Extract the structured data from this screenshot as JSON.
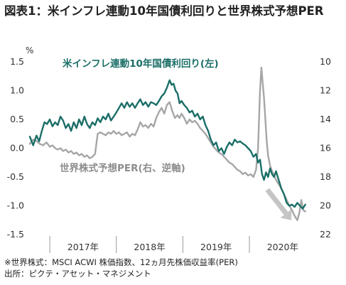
{
  "title": "図表1：米インフレ連動10年国債利回りと世界株式予想PER",
  "footnotes": [
    "※世界株式：MSCI ACWI 株価指数、12ヵ月先株価収益率(PER)",
    "出所：ピクテ・アセット・マネジメント"
  ],
  "chart_data": {
    "type": "line",
    "left_axis": {
      "unit": "%",
      "ylim": [
        -1.5,
        1.5
      ],
      "ticks": [
        1.5,
        1.0,
        0.5,
        0.0,
        -0.5,
        -1.0,
        -1.5
      ],
      "tick_labels": [
        "1.5",
        "1.0",
        "0.5",
        "0.0",
        "-0.5",
        "-1.0",
        "-1.5"
      ]
    },
    "right_axis": {
      "ylim": [
        10,
        22
      ],
      "inverted": true,
      "ticks": [
        10,
        12,
        14,
        16,
        18,
        20,
        22
      ],
      "tick_labels": [
        "10",
        "12",
        "14",
        "16",
        "18",
        "20",
        "22"
      ]
    },
    "x_axis": {
      "range": [
        2016.7,
        2020.95
      ],
      "years": [
        2017,
        2018,
        2019,
        2020
      ],
      "year_labels": [
        "2017年",
        "2018年",
        "2019年",
        "2020年"
      ],
      "year_boundaries": [
        2017,
        2018,
        2019,
        2020
      ]
    },
    "grid": false,
    "series": [
      {
        "name": "米インフレ連動10年国債利回り(左)",
        "axis": "left",
        "color": "#1a6e67",
        "points": [
          [
            2016.7,
            0.2
          ],
          [
            2016.75,
            0.05
          ],
          [
            2016.8,
            0.22
          ],
          [
            2016.84,
            0.12
          ],
          [
            2016.88,
            0.3
          ],
          [
            2016.92,
            0.45
          ],
          [
            2016.96,
            0.42
          ],
          [
            2017.0,
            0.5
          ],
          [
            2017.04,
            0.38
          ],
          [
            2017.08,
            0.45
          ],
          [
            2017.12,
            0.4
          ],
          [
            2017.16,
            0.55
          ],
          [
            2017.2,
            0.48
          ],
          [
            2017.24,
            0.35
          ],
          [
            2017.28,
            0.42
          ],
          [
            2017.32,
            0.3
          ],
          [
            2017.36,
            0.45
          ],
          [
            2017.4,
            0.35
          ],
          [
            2017.44,
            0.5
          ],
          [
            2017.48,
            0.4
          ],
          [
            2017.52,
            0.55
          ],
          [
            2017.56,
            0.42
          ],
          [
            2017.6,
            0.35
          ],
          [
            2017.64,
            0.45
          ],
          [
            2017.68,
            0.4
          ],
          [
            2017.72,
            0.52
          ],
          [
            2017.76,
            0.45
          ],
          [
            2017.8,
            0.55
          ],
          [
            2017.84,
            0.5
          ],
          [
            2017.88,
            0.6
          ],
          [
            2017.92,
            0.48
          ],
          [
            2017.96,
            0.55
          ],
          [
            2018.0,
            0.62
          ],
          [
            2018.04,
            0.7
          ],
          [
            2018.08,
            0.78
          ],
          [
            2018.12,
            0.7
          ],
          [
            2018.16,
            0.8
          ],
          [
            2018.2,
            0.72
          ],
          [
            2018.24,
            0.78
          ],
          [
            2018.28,
            0.7
          ],
          [
            2018.32,
            0.78
          ],
          [
            2018.36,
            0.85
          ],
          [
            2018.4,
            0.75
          ],
          [
            2018.44,
            0.8
          ],
          [
            2018.48,
            0.72
          ],
          [
            2018.52,
            0.8
          ],
          [
            2018.56,
            0.78
          ],
          [
            2018.6,
            0.75
          ],
          [
            2018.64,
            0.82
          ],
          [
            2018.68,
            0.9
          ],
          [
            2018.72,
            0.95
          ],
          [
            2018.76,
            1.05
          ],
          [
            2018.8,
            1.18
          ],
          [
            2018.83,
            1.1
          ],
          [
            2018.86,
            1.12
          ],
          [
            2018.89,
            1.0
          ],
          [
            2018.92,
            0.95
          ],
          [
            2018.95,
            0.78
          ],
          [
            2018.98,
            0.82
          ],
          [
            2019.02,
            0.75
          ],
          [
            2019.06,
            0.7
          ],
          [
            2019.1,
            0.62
          ],
          [
            2019.14,
            0.65
          ],
          [
            2019.18,
            0.55
          ],
          [
            2019.22,
            0.6
          ],
          [
            2019.26,
            0.5
          ],
          [
            2019.3,
            0.55
          ],
          [
            2019.34,
            0.4
          ],
          [
            2019.38,
            0.3
          ],
          [
            2019.42,
            0.15
          ],
          [
            2019.46,
            0.05
          ],
          [
            2019.5,
            0.1
          ],
          [
            2019.54,
            -0.05
          ],
          [
            2019.58,
            0.0
          ],
          [
            2019.62,
            -0.1
          ],
          [
            2019.66,
            0.02
          ],
          [
            2019.7,
            0.1
          ],
          [
            2019.74,
            0.05
          ],
          [
            2019.78,
            0.15
          ],
          [
            2019.82,
            0.1
          ],
          [
            2019.86,
            0.12
          ],
          [
            2019.9,
            0.08
          ],
          [
            2019.94,
            0.05
          ],
          [
            2019.98,
            0.0
          ],
          [
            2020.02,
            -0.05
          ],
          [
            2020.06,
            -0.15
          ],
          [
            2020.1,
            -0.1
          ],
          [
            2020.13,
            -0.25
          ],
          [
            2020.16,
            -0.2
          ],
          [
            2020.19,
            -0.45
          ],
          [
            2020.22,
            -0.55
          ],
          [
            2020.25,
            -0.42
          ],
          [
            2020.28,
            -0.5
          ],
          [
            2020.31,
            -0.35
          ],
          [
            2020.34,
            -0.45
          ],
          [
            2020.37,
            -0.5
          ],
          [
            2020.4,
            -0.4
          ],
          [
            2020.44,
            -0.55
          ],
          [
            2020.48,
            -0.7
          ],
          [
            2020.52,
            -0.8
          ],
          [
            2020.56,
            -0.95
          ],
          [
            2020.6,
            -1.0
          ],
          [
            2020.64,
            -0.98
          ],
          [
            2020.68,
            -1.02
          ],
          [
            2020.72,
            -0.95
          ],
          [
            2020.76,
            -1.0
          ],
          [
            2020.8,
            -1.05
          ],
          [
            2020.84,
            -0.98
          ]
        ]
      },
      {
        "name": "世界株式予想PER(右、逆軸)",
        "axis": "right",
        "color": "#a6a6a6",
        "points": [
          [
            2016.7,
            15.7
          ],
          [
            2016.75,
            15.4
          ],
          [
            2016.8,
            15.5
          ],
          [
            2016.85,
            15.7
          ],
          [
            2016.9,
            15.8
          ],
          [
            2016.95,
            15.6
          ],
          [
            2017.0,
            15.9
          ],
          [
            2017.04,
            15.8
          ],
          [
            2017.08,
            16.0
          ],
          [
            2017.12,
            16.1
          ],
          [
            2017.16,
            16.0
          ],
          [
            2017.2,
            16.2
          ],
          [
            2017.24,
            16.1
          ],
          [
            2017.28,
            16.3
          ],
          [
            2017.32,
            16.2
          ],
          [
            2017.36,
            16.4
          ],
          [
            2017.4,
            16.3
          ],
          [
            2017.44,
            16.5
          ],
          [
            2017.48,
            16.4
          ],
          [
            2017.52,
            16.6
          ],
          [
            2017.56,
            16.5
          ],
          [
            2017.6,
            16.7
          ],
          [
            2017.64,
            16.6
          ],
          [
            2017.68,
            16.4
          ],
          [
            2017.72,
            15.0
          ],
          [
            2017.76,
            14.9
          ],
          [
            2017.8,
            15.0
          ],
          [
            2017.84,
            15.1
          ],
          [
            2017.88,
            14.9
          ],
          [
            2017.92,
            15.0
          ],
          [
            2017.96,
            14.8
          ],
          [
            2018.0,
            15.0
          ],
          [
            2018.04,
            14.9
          ],
          [
            2018.08,
            15.1
          ],
          [
            2018.12,
            15.0
          ],
          [
            2018.16,
            14.9
          ],
          [
            2018.2,
            15.2
          ],
          [
            2018.24,
            15.0
          ],
          [
            2018.28,
            15.1
          ],
          [
            2018.32,
            14.7
          ],
          [
            2018.36,
            14.2
          ],
          [
            2018.4,
            14.5
          ],
          [
            2018.44,
            14.4
          ],
          [
            2018.48,
            14.6
          ],
          [
            2018.52,
            14.3
          ],
          [
            2018.56,
            14.5
          ],
          [
            2018.6,
            13.9
          ],
          [
            2018.64,
            13.5
          ],
          [
            2018.68,
            13.2
          ],
          [
            2018.72,
            13.6
          ],
          [
            2018.76,
            13.0
          ],
          [
            2018.8,
            12.8
          ],
          [
            2018.84,
            13.4
          ],
          [
            2018.88,
            13.9
          ],
          [
            2018.92,
            13.7
          ],
          [
            2018.95,
            13.9
          ],
          [
            2018.98,
            13.6
          ],
          [
            2019.02,
            13.9
          ],
          [
            2019.06,
            14.3
          ],
          [
            2019.1,
            14.0
          ],
          [
            2019.14,
            14.2
          ],
          [
            2019.18,
            14.1
          ],
          [
            2019.22,
            14.3
          ],
          [
            2019.26,
            14.6
          ],
          [
            2019.3,
            14.8
          ],
          [
            2019.34,
            15.0
          ],
          [
            2019.38,
            15.3
          ],
          [
            2019.42,
            15.6
          ],
          [
            2019.46,
            15.9
          ],
          [
            2019.5,
            16.1
          ],
          [
            2019.54,
            16.3
          ],
          [
            2019.58,
            16.4
          ],
          [
            2019.62,
            16.6
          ],
          [
            2019.66,
            16.8
          ],
          [
            2019.7,
            17.0
          ],
          [
            2019.74,
            17.1
          ],
          [
            2019.78,
            17.3
          ],
          [
            2019.82,
            17.5
          ],
          [
            2019.86,
            17.6
          ],
          [
            2019.9,
            17.8
          ],
          [
            2019.94,
            17.7
          ],
          [
            2019.98,
            17.9
          ],
          [
            2020.02,
            17.8
          ],
          [
            2020.06,
            18.0
          ],
          [
            2020.1,
            17.5
          ],
          [
            2020.13,
            16.0
          ],
          [
            2020.16,
            12.0
          ],
          [
            2020.18,
            10.4
          ],
          [
            2020.2,
            11.5
          ],
          [
            2020.22,
            12.5
          ],
          [
            2020.24,
            14.0
          ],
          [
            2020.26,
            15.5
          ],
          [
            2020.28,
            16.5
          ],
          [
            2020.31,
            17.2
          ],
          [
            2020.34,
            17.6
          ],
          [
            2020.37,
            17.9
          ],
          [
            2020.4,
            18.2
          ],
          [
            2020.44,
            18.5
          ],
          [
            2020.48,
            18.8
          ],
          [
            2020.52,
            19.2
          ],
          [
            2020.56,
            19.6
          ],
          [
            2020.6,
            20.0
          ],
          [
            2020.64,
            20.3
          ],
          [
            2020.68,
            20.7
          ],
          [
            2020.72,
            21.0
          ],
          [
            2020.75,
            20.5
          ],
          [
            2020.78,
            19.6
          ],
          [
            2020.81,
            20.3
          ],
          [
            2020.84,
            20.4
          ]
        ]
      }
    ],
    "annotations": {
      "trend_arrow": {
        "from": [
          2020.27,
          -0.72
        ],
        "to": [
          2020.63,
          -1.25
        ],
        "color": "#c5c5c5"
      }
    }
  }
}
